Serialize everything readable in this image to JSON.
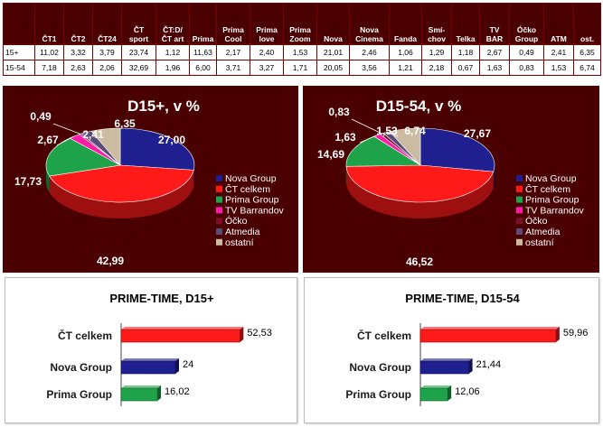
{
  "table": {
    "columns": [
      "",
      "ČT1",
      "ČT2",
      "ČT24",
      "ČT sport",
      "ČT:D/ ČT art",
      "Prima",
      "Prima Cool",
      "Prima love",
      "Prima Zoom",
      "Nova",
      "Nova Cinema",
      "Fanda",
      "Smí-chov",
      "Telka",
      "TV BAR",
      "Óčko Group",
      "ATM",
      "ost."
    ],
    "rows": [
      {
        "label": "15+",
        "values": [
          "11,02",
          "3,32",
          "3,79",
          "23,74",
          "1,12",
          "11,63",
          "2,17",
          "2,40",
          "1,53",
          "21,01",
          "2,46",
          "1,06",
          "1,29",
          "1,18",
          "2,67",
          "0,49",
          "2,41",
          "6,35"
        ]
      },
      {
        "label": "15-54",
        "values": [
          "7,18",
          "2,63",
          "2,06",
          "32,69",
          "1,96",
          "6,00",
          "3,71",
          "3,27",
          "1,71",
          "20,05",
          "3,56",
          "1,21",
          "2,18",
          "0,67",
          "1,63",
          "0,83",
          "1,53",
          "6,74"
        ]
      }
    ]
  },
  "chart_data": [
    {
      "type": "pie",
      "title": "D15+, v %",
      "legend_position": "right",
      "slices": [
        {
          "label": "Nova Group",
          "value": 27.0,
          "display": "27,00",
          "color": "#1f1f8f"
        },
        {
          "label": "ČT celkem",
          "value": 42.99,
          "display": "42,99",
          "color": "#ff1a1a"
        },
        {
          "label": "Prima Group",
          "value": 17.73,
          "display": "17,73",
          "color": "#1fa34a"
        },
        {
          "label": "TV Barrandov",
          "value": 2.67,
          "display": "2,67",
          "color": "#ff1aa8"
        },
        {
          "label": "Óčko",
          "value": 0.49,
          "display": "0,49",
          "color": "#7a0f2a"
        },
        {
          "label": "Atmedia",
          "value": 2.41,
          "display": "2,41",
          "color": "#5a4a7a"
        },
        {
          "label": "ostatní",
          "value": 6.35,
          "display": "6,35",
          "color": "#cbbba0"
        }
      ]
    },
    {
      "type": "pie",
      "title": "D15-54, v %",
      "legend_position": "right",
      "slices": [
        {
          "label": "Nova Group",
          "value": 27.67,
          "display": "27,67",
          "color": "#1f1f8f"
        },
        {
          "label": "ČT celkem",
          "value": 46.52,
          "display": "46,52",
          "color": "#ff1a1a"
        },
        {
          "label": "Prima Group",
          "value": 14.69,
          "display": "14,69",
          "color": "#1fa34a"
        },
        {
          "label": "TV Barrandov",
          "value": 1.63,
          "display": "1,63",
          "color": "#ff1aa8"
        },
        {
          "label": "Óčko",
          "value": 0.83,
          "display": "0,83",
          "color": "#7a0f2a"
        },
        {
          "label": "Atmedia",
          "value": 1.53,
          "display": "1,53",
          "color": "#5a4a7a"
        },
        {
          "label": "ostatní",
          "value": 6.74,
          "display": "6,74",
          "color": "#cbbba0"
        }
      ]
    },
    {
      "type": "bar",
      "orientation": "horizontal",
      "title": "PRIME-TIME, D15+",
      "categories": [
        "ČT celkem",
        "Nova Group",
        "Prima Group"
      ],
      "values": [
        52.53,
        24,
        16.02
      ],
      "labels": [
        "52,53",
        "24",
        "16,02"
      ],
      "colors": [
        "#ff1a1a",
        "#1f1f8f",
        "#1fa34a"
      ],
      "xlim": [
        0,
        60
      ]
    },
    {
      "type": "bar",
      "orientation": "horizontal",
      "title": "PRIME-TIME, D15-54",
      "categories": [
        "ČT celkem",
        "Nova Group",
        "Prima Group"
      ],
      "values": [
        59.96,
        21.44,
        12.06
      ],
      "labels": [
        "59,96",
        "21,44",
        "12,06"
      ],
      "colors": [
        "#ff1a1a",
        "#1f1f8f",
        "#1fa34a"
      ],
      "xlim": [
        0,
        60
      ]
    }
  ]
}
